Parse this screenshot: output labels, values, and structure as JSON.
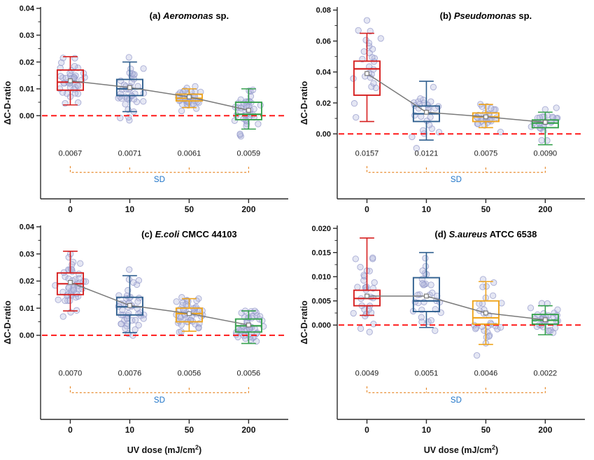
{
  "figure": {
    "background": "#ffffff",
    "sd_caption": "SD",
    "xlabel_parts": {
      "main": "UV dose (mJ/cm",
      "sup": "2",
      "end": ")"
    },
    "colors": {
      "box": [
        "#d62020",
        "#2f5f8f",
        "#efa51e",
        "#36a14e"
      ],
      "zero_line": "#ff1a1a",
      "scatter_fill": "#b9bedf",
      "scatter_stroke": "#9096c8",
      "mean_line": "#7a7a7a",
      "bracket": "#e5801a",
      "sd_caption_color": "#1e74c8",
      "axis": "#2a2a2a",
      "text": "#111111"
    }
  },
  "chart_data": [
    {
      "type": "box",
      "panel_label": "(a)",
      "title_italic": "Aeromonas",
      "title_rest": " sp.",
      "ylabel": "ΔC-D-ratio",
      "has_xlabel": false,
      "categories": [
        "0",
        "10",
        "50",
        "200"
      ],
      "ylim": [
        -0.031,
        0.0405
      ],
      "yticks": [
        0,
        0.01,
        0.02,
        0.03,
        0.04
      ],
      "ytick_decimals": 2,
      "n_points": 40,
      "boxes": [
        {
          "category": "0",
          "whisker_low": 0.004,
          "q1": 0.0095,
          "median": 0.0125,
          "q3": 0.017,
          "whisker_high": 0.022,
          "mean": 0.013,
          "sd": "0.0067"
        },
        {
          "category": "10",
          "whisker_low": 0.0015,
          "q1": 0.0075,
          "median": 0.01,
          "q3": 0.0135,
          "whisker_high": 0.02,
          "mean": 0.0105,
          "sd": "0.0071"
        },
        {
          "category": "50",
          "whisker_low": 0.003,
          "q1": 0.0055,
          "median": 0.0065,
          "q3": 0.008,
          "whisker_high": 0.01,
          "mean": 0.007,
          "sd": "0.0061"
        },
        {
          "category": "200",
          "whisker_low": -0.005,
          "q1": -0.0015,
          "median": 0.0005,
          "q3": 0.005,
          "whisker_high": 0.01,
          "mean": 0.002,
          "sd": "0.0059"
        }
      ]
    },
    {
      "type": "box",
      "panel_label": "(b)",
      "title_italic": "Pseudomonas",
      "title_rest": " sp.",
      "ylabel": "ΔC-D-ratio",
      "has_xlabel": false,
      "categories": [
        "0",
        "10",
        "50",
        "200"
      ],
      "ylim": [
        -0.042,
        0.082
      ],
      "yticks": [
        0,
        0.02,
        0.04,
        0.06,
        0.08
      ],
      "ytick_decimals": 2,
      "n_points": 26,
      "boxes": [
        {
          "category": "0",
          "whisker_low": 0.008,
          "q1": 0.025,
          "median": 0.042,
          "q3": 0.047,
          "whisker_high": 0.065,
          "mean": 0.039,
          "sd": "0.0157"
        },
        {
          "category": "10",
          "whisker_low": -0.004,
          "q1": 0.008,
          "median": 0.013,
          "q3": 0.018,
          "whisker_high": 0.034,
          "mean": 0.014,
          "sd": "0.0121"
        },
        {
          "category": "50",
          "whisker_low": 0.004,
          "q1": 0.008,
          "median": 0.011,
          "q3": 0.0135,
          "whisker_high": 0.019,
          "mean": 0.011,
          "sd": "0.0075"
        },
        {
          "category": "200",
          "whisker_low": -0.007,
          "q1": 0.004,
          "median": 0.007,
          "q3": 0.009,
          "whisker_high": 0.014,
          "mean": 0.0075,
          "sd": "0.0090"
        }
      ]
    },
    {
      "type": "box",
      "panel_label": "(c)",
      "title_italic": "E.coli",
      "title_rest": " CMCC 44103",
      "ylabel": "ΔC-D-ratio",
      "has_xlabel": true,
      "categories": [
        "0",
        "10",
        "50",
        "200"
      ],
      "ylim": [
        -0.031,
        0.0405
      ],
      "yticks": [
        0,
        0.01,
        0.02,
        0.03,
        0.04
      ],
      "ytick_decimals": 2,
      "n_points": 46,
      "boxes": [
        {
          "category": "0",
          "whisker_low": 0.009,
          "q1": 0.015,
          "median": 0.019,
          "q3": 0.023,
          "whisker_high": 0.031,
          "mean": 0.0195,
          "sd": "0.0070"
        },
        {
          "category": "10",
          "whisker_low": 0.001,
          "q1": 0.0075,
          "median": 0.0105,
          "q3": 0.014,
          "whisker_high": 0.022,
          "mean": 0.011,
          "sd": "0.0076"
        },
        {
          "category": "50",
          "whisker_low": 0.0015,
          "q1": 0.005,
          "median": 0.008,
          "q3": 0.01,
          "whisker_high": 0.0135,
          "mean": 0.008,
          "sd": "0.0056"
        },
        {
          "category": "200",
          "whisker_low": -0.003,
          "q1": 0.0012,
          "median": 0.0035,
          "q3": 0.006,
          "whisker_high": 0.009,
          "mean": 0.0038,
          "sd": "0.0056"
        }
      ]
    },
    {
      "type": "box",
      "panel_label": "(d)",
      "title_italic": "S.aureus",
      "title_rest": " ATCC 6538",
      "ylabel": "ΔC-D-ratio",
      "has_xlabel": true,
      "categories": [
        "0",
        "10",
        "50",
        "200"
      ],
      "ylim": [
        -0.0195,
        0.0206
      ],
      "yticks": [
        0,
        0.005,
        0.01,
        0.015,
        0.02
      ],
      "ytick_decimals": 3,
      "n_points": 30,
      "boxes": [
        {
          "category": "0",
          "whisker_low": 0.002,
          "q1": 0.004,
          "median": 0.0055,
          "q3": 0.0072,
          "whisker_high": 0.018,
          "mean": 0.006,
          "sd": "0.0049"
        },
        {
          "category": "10",
          "whisker_low": -0.0005,
          "q1": 0.0028,
          "median": 0.005,
          "q3": 0.0098,
          "whisker_high": 0.015,
          "mean": 0.006,
          "sd": "0.0051"
        },
        {
          "category": "50",
          "whisker_low": -0.004,
          "q1": 0.0002,
          "median": 0.0015,
          "q3": 0.005,
          "whisker_high": 0.009,
          "mean": 0.0025,
          "sd": "0.0046"
        },
        {
          "category": "200",
          "whisker_low": -0.002,
          "q1": 0.0002,
          "median": 0.001,
          "q3": 0.0022,
          "whisker_high": 0.004,
          "mean": 0.0011,
          "sd": "0.0022"
        }
      ]
    }
  ]
}
